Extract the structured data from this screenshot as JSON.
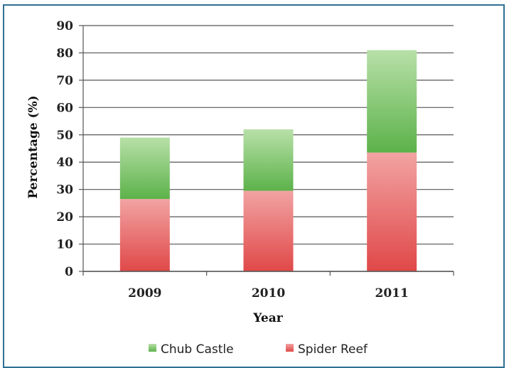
{
  "chart_data": {
    "type": "bar",
    "stacked": true,
    "categories": [
      "2009",
      "2010",
      "2011"
    ],
    "series": [
      {
        "name": "Spider Reef",
        "values": [
          26.5,
          29.5,
          43.5
        ],
        "color": "#e55a5a"
      },
      {
        "name": "Chub Castle",
        "values": [
          22.5,
          22.5,
          37.5
        ],
        "color": "#7cc56a"
      }
    ],
    "xlabel": "Year",
    "ylabel": "Percentage (%)",
    "ylim": [
      0,
      90
    ],
    "yticks": [
      0,
      10,
      20,
      30,
      40,
      50,
      60,
      70,
      80,
      90
    ],
    "grid": true,
    "legend": {
      "placement": "bottom",
      "entries": [
        "Chub Castle",
        "Spider Reef"
      ]
    }
  },
  "colors": {
    "frame": "#2f6f93",
    "gridline": "#555555"
  }
}
